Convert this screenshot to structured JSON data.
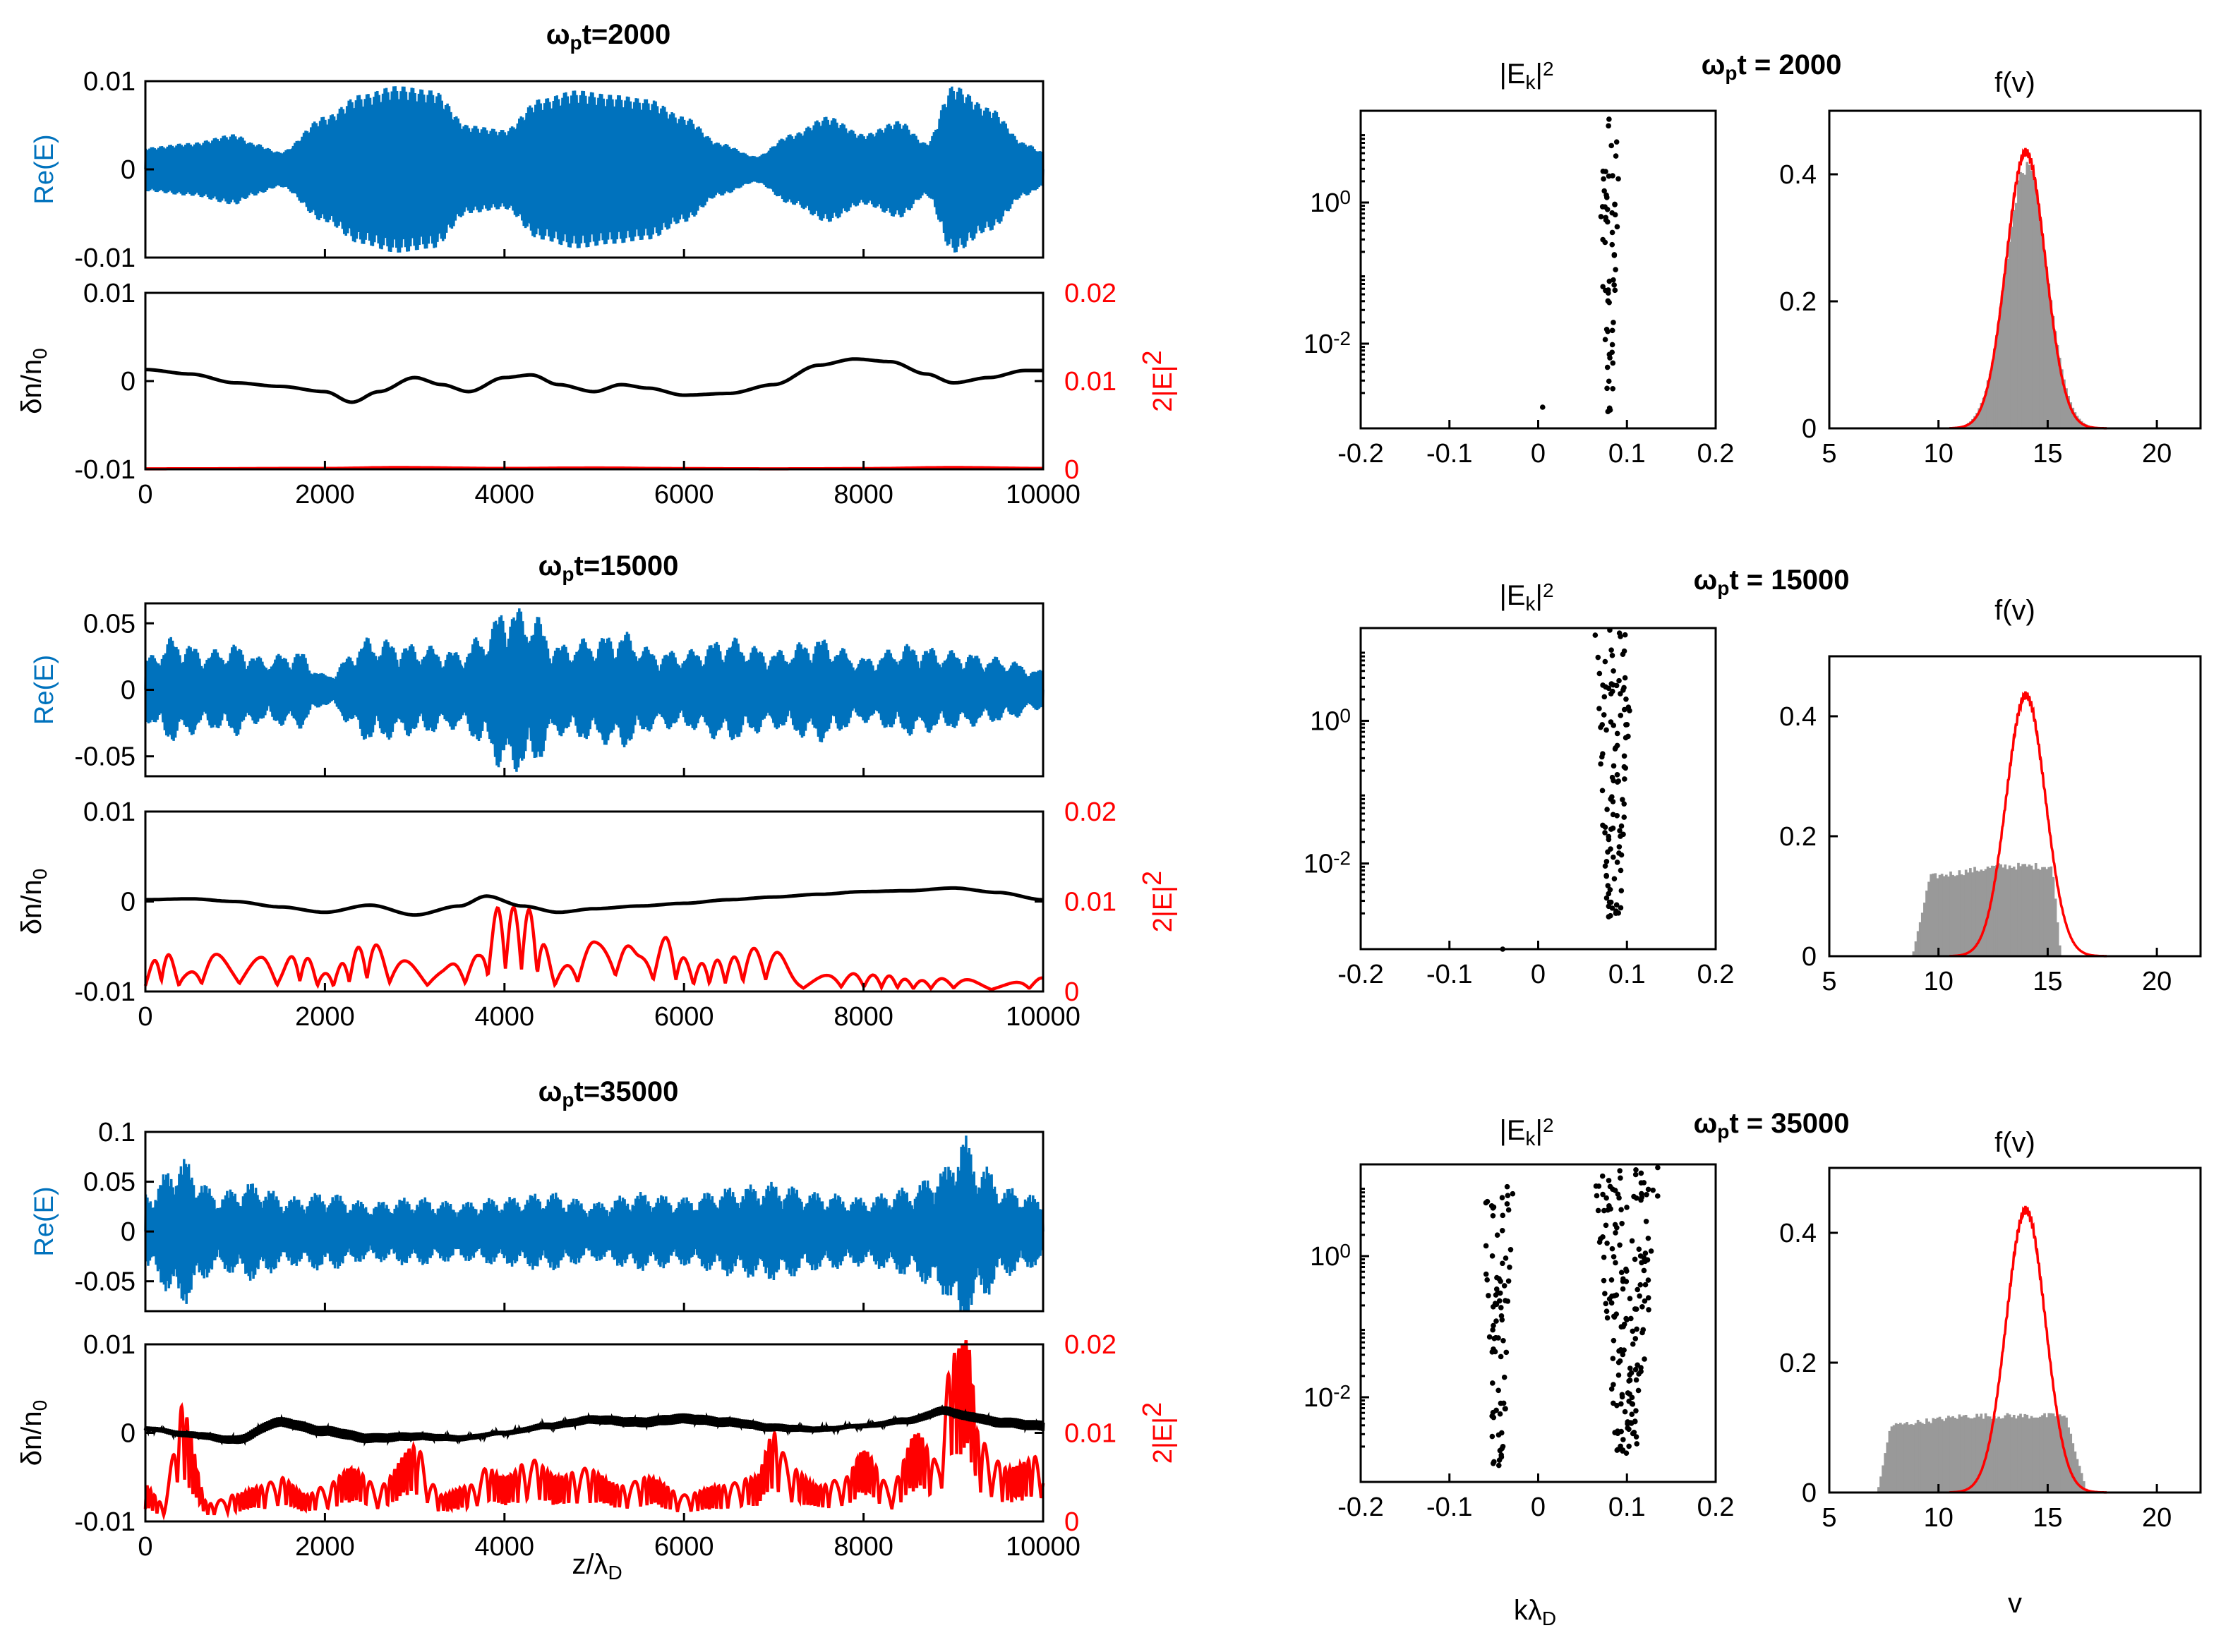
{
  "figure": {
    "rows": [
      {
        "time_label": "ω_p t=2000",
        "title_main": "t=2000",
        "spec_title_main": "t = 2000",
        "ReE": {
          "ylabel": "Re(E)",
          "ylim": [
            -0.01,
            0.01
          ],
          "yticks": [
            "0.01",
            "0",
            "-0.01"
          ]
        },
        "dn": {
          "ylabel": "δn/n_0",
          "ylim": [
            -0.01,
            0.01
          ],
          "yticks": [
            "0.01",
            "0",
            "-0.01"
          ],
          "right_label": "2|E|^2",
          "rylim": [
            0,
            0.02
          ],
          "ryticks": [
            "0.02",
            "0.01",
            "0"
          ]
        },
        "spec": {
          "title": "|E_k|^2",
          "yticks": [
            "10^0",
            "10^-2"
          ]
        },
        "fv": {
          "title": "f(v)",
          "ylim": [
            0,
            0.5
          ],
          "yticks": [
            "0.4",
            "0.2",
            "0"
          ]
        }
      },
      {
        "time_label": "ω_p t=15000",
        "title_main": "t=15000",
        "spec_title_main": "t = 15000",
        "ReE": {
          "ylabel": "Re(E)",
          "ylim": [
            -0.065,
            0.065
          ],
          "yticks": [
            "0.05",
            "0",
            "-0.05"
          ]
        },
        "dn": {
          "ylabel": "δn/n_0",
          "ylim": [
            -0.01,
            0.01
          ],
          "yticks": [
            "0.01",
            "0",
            "-0.01"
          ],
          "right_label": "2|E|^2",
          "rylim": [
            0,
            0.02
          ],
          "ryticks": [
            "0.02",
            "0.01",
            "0"
          ]
        },
        "spec": {
          "title": "|E_k|^2",
          "yticks": [
            "10^0",
            "10^-2"
          ]
        },
        "fv": {
          "title": "f(v)",
          "ylim": [
            0,
            0.5
          ],
          "yticks": [
            "0.4",
            "0.2",
            "0"
          ]
        }
      },
      {
        "time_label": "ω_p t=35000",
        "title_main": "t=35000",
        "spec_title_main": "t = 35000",
        "ReE": {
          "ylabel": "Re(E)",
          "ylim": [
            -0.08,
            0.1
          ],
          "yticks": [
            "0.1",
            "0.05",
            "0",
            "-0.05"
          ]
        },
        "dn": {
          "ylabel": "δn/n_0",
          "ylim": [
            -0.01,
            0.01
          ],
          "yticks": [
            "0.01",
            "0",
            "-0.01"
          ],
          "right_label": "2|E|^2",
          "rylim": [
            0,
            0.02
          ],
          "ryticks": [
            "0.02",
            "0.01",
            "0"
          ]
        },
        "spec": {
          "title": "|E_k|^2",
          "yticks": [
            "10^0",
            "10^-2"
          ]
        },
        "fv": {
          "title": "f(v)",
          "ylim": [
            0,
            0.5
          ],
          "yticks": [
            "0.4",
            "0.2",
            "0"
          ]
        }
      }
    ],
    "omega_symbol": "ω",
    "omega_sub": "p",
    "xlabel_z": "z/λ_D",
    "xlabel_k": "kλ_D",
    "xlabel_v": "v",
    "xticks_z": [
      "0",
      "2000",
      "4000",
      "6000",
      "8000",
      "10000"
    ],
    "xticks_k": [
      "-0.2",
      "-0.1",
      "0",
      "0.1",
      "0.2"
    ],
    "xticks_v": [
      "5",
      "10",
      "15",
      "20"
    ]
  },
  "chart_data": [
    {
      "type": "line",
      "panel": "Re(E) vs z/λD (three times)",
      "xlabel": "z/λ_D",
      "ylabel": "Re(E)",
      "xlim": [
        0,
        10000
      ],
      "series": [
        {
          "name": "ω_p t=2000",
          "color": "#0072BD",
          "carrier_wavenumber": 0.08,
          "envelope_z": [
            0,
            500,
            1000,
            1200,
            1500,
            2000,
            2400,
            2800,
            3200,
            3600,
            4000,
            4400,
            4800,
            5200,
            5600,
            6000,
            6400,
            6800,
            7200,
            7600,
            8000,
            8400,
            8700,
            9000,
            9400,
            9800,
            10000
          ],
          "envelope_amp": [
            0.0025,
            0.003,
            0.004,
            0.003,
            0.002,
            0.006,
            0.0085,
            0.0095,
            0.009,
            0.005,
            0.0045,
            0.008,
            0.009,
            0.0085,
            0.008,
            0.006,
            0.003,
            0.0015,
            0.004,
            0.006,
            0.004,
            0.0055,
            0.003,
            0.0095,
            0.007,
            0.003,
            0.002
          ]
        },
        {
          "name": "ω_p t=15000",
          "color": "#0072BD",
          "carrier_wavenumber": 0.08,
          "envelope_z": [
            0,
            300,
            700,
            1000,
            1300,
            1700,
            2000,
            2500,
            3000,
            3500,
            3800,
            4000,
            4300,
            4600,
            5000,
            5300,
            5700,
            6000,
            6500,
            7000,
            7500,
            8000,
            8500,
            9000,
            9500,
            10000
          ],
          "envelope_amp": [
            0.025,
            0.04,
            0.03,
            0.035,
            0.025,
            0.03,
            0.012,
            0.04,
            0.035,
            0.03,
            0.045,
            0.065,
            0.06,
            0.035,
            0.04,
            0.045,
            0.03,
            0.03,
            0.04,
            0.03,
            0.04,
            0.025,
            0.035,
            0.03,
            0.025,
            0.015
          ]
        },
        {
          "name": "ω_p t=35000",
          "color": "#0072BD",
          "carrier_wavenumber": 0.09,
          "envelope_z": [
            0,
            400,
            800,
            1200,
            1600,
            2000,
            2500,
            3000,
            3500,
            4000,
            4500,
            5000,
            5500,
            6000,
            6500,
            7000,
            7500,
            8000,
            8500,
            8900,
            9100,
            9300,
            9600,
            10000
          ],
          "envelope_amp": [
            0.04,
            0.075,
            0.04,
            0.05,
            0.035,
            0.04,
            0.03,
            0.035,
            0.03,
            0.035,
            0.04,
            0.03,
            0.04,
            0.035,
            0.045,
            0.05,
            0.04,
            0.035,
            0.045,
            0.065,
            0.1,
            0.07,
            0.045,
            0.035
          ]
        }
      ]
    },
    {
      "type": "line",
      "panel": "δn/n0 (left axis, black) and 2|E|^2 (right axis, red) vs z/λD",
      "xlabel": "z/λ_D",
      "xlim": [
        0,
        10000
      ],
      "ylim": [
        -0.01,
        0.01
      ],
      "ylim_right": [
        0,
        0.02
      ],
      "series": [
        {
          "name": "δn/n0 at ω_p t=2000",
          "color": "#000000",
          "z": [
            0,
            500,
            1000,
            1500,
            2000,
            2300,
            2600,
            3000,
            3300,
            3600,
            4000,
            4300,
            4600,
            5000,
            5300,
            5600,
            6000,
            6500,
            7000,
            7500,
            7900,
            8300,
            8700,
            9000,
            9400,
            9800,
            10000
          ],
          "values": [
            0.0013,
            0.0008,
            -0.0002,
            -0.0006,
            -0.0012,
            -0.0024,
            -0.0012,
            0.0004,
            -0.0004,
            -0.0012,
            0.0004,
            0.0007,
            -0.0004,
            -0.0012,
            -0.0004,
            -0.0008,
            -0.0016,
            -0.0014,
            -0.0004,
            0.0018,
            0.0025,
            0.0022,
            0.0008,
            -0.0002,
            0.0004,
            0.0012,
            0.0012
          ]
        },
        {
          "name": "2|E|^2 at ω_p t=2000",
          "color": "#ff0000",
          "z": [
            0,
            2000,
            2800,
            4000,
            5000,
            6000,
            7000,
            8000,
            9000,
            10000
          ],
          "values": [
            5e-05,
            0.0001,
            0.0002,
            0.0001,
            0.00015,
            8e-05,
            5e-05,
            8e-05,
            0.0002,
            0.0001
          ]
        },
        {
          "name": "δn/n0 at ω_p t=15000",
          "color": "#000000",
          "z": [
            0,
            500,
            1000,
            1500,
            2000,
            2500,
            3000,
            3500,
            3800,
            4200,
            4600,
            5000,
            5500,
            6000,
            6500,
            7000,
            7500,
            8000,
            8500,
            9000,
            9500,
            10000
          ],
          "values": [
            0.0002,
            0.0003,
            0.0,
            -0.0006,
            -0.0012,
            -0.0004,
            -0.0015,
            -0.0005,
            0.0006,
            -0.0005,
            -0.0012,
            -0.0008,
            -0.0005,
            -0.0002,
            0.0002,
            0.0005,
            0.0008,
            0.0011,
            0.0012,
            0.0015,
            0.001,
            0.0002
          ]
        },
        {
          "name": "2|E|^2 at ω_p t=15000",
          "color": "#ff0000",
          "peaks_z": [
            0,
            200,
            450,
            750,
            1000,
            1300,
            1500,
            1700,
            2000,
            2500,
            2800,
            3300,
            3500,
            3700,
            3950,
            4250,
            4600,
            5000,
            5300,
            5500,
            5800,
            6100,
            6400,
            6950,
            7300,
            7800,
            8200,
            8600,
            9000,
            9500,
            10000
          ],
          "peaks_val": [
            0.0025,
            0.0045,
            0.002,
            0.0042,
            0.0035,
            0.0038,
            0.0028,
            0.0045,
            0.002,
            0.0055,
            0.0035,
            0.0025,
            0.0035,
            0.004,
            0.0095,
            0.0092,
            0.0025,
            0.0055,
            0.0072,
            0.004,
            0.006,
            0.003,
            0.0035,
            0.0052,
            0.0015,
            0.002,
            0.0018,
            0.0012,
            0.0015,
            0.0008,
            0.0015
          ]
        },
        {
          "name": "δn/n0 at ω_p t=35000",
          "color": "#000000",
          "z": [
            0,
            500,
            1000,
            1500,
            2000,
            2500,
            3000,
            3500,
            4000,
            4500,
            5000,
            5500,
            6000,
            6500,
            7000,
            7500,
            8000,
            8500,
            8900,
            9200,
            9500,
            10000
          ],
          "values": [
            0.0005,
            -0.0002,
            -0.0008,
            0.0012,
            0.0002,
            -0.0006,
            -0.0004,
            -0.0006,
            0.0,
            0.0008,
            0.0015,
            0.0012,
            0.0016,
            0.0012,
            0.0006,
            0.0004,
            0.0008,
            0.0014,
            0.0025,
            0.0018,
            0.0012,
            0.0008
          ]
        },
        {
          "name": "2|E|^2 at ω_p t=35000",
          "color": "#ff0000",
          "peaks_z": [
            0,
            200,
            400,
            700,
            1000,
            1300,
            1500,
            1800,
            2000,
            2300,
            2600,
            3000,
            3300,
            3600,
            3800,
            4000,
            4300,
            4600,
            4900,
            5300,
            5600,
            6000,
            6400,
            6800,
            7000,
            7200,
            7500,
            7800,
            8000,
            8300,
            8600,
            8800,
            9000,
            9150,
            9300,
            9600,
            10000
          ],
          "peaks_val": [
            0.004,
            0.002,
            0.013,
            0.002,
            0.003,
            0.004,
            0.005,
            0.003,
            0.004,
            0.006,
            0.004,
            0.0085,
            0.003,
            0.004,
            0.006,
            0.005,
            0.007,
            0.005,
            0.006,
            0.004,
            0.005,
            0.003,
            0.004,
            0.005,
            0.01,
            0.006,
            0.004,
            0.005,
            0.008,
            0.004,
            0.01,
            0.007,
            0.019,
            0.0205,
            0.009,
            0.006,
            0.0075
          ]
        }
      ]
    },
    {
      "type": "scatter",
      "panel": "|E_k|^2 spectrum (log y) vs kλD",
      "xlabel": "kλ_D",
      "xlim": [
        -0.2,
        0.2
      ],
      "yscale": "log",
      "ylim_log10": [
        -3.2,
        1.3
      ],
      "color": "#000000",
      "series": [
        {
          "name": "ω_p t=2000",
          "k_log10_cluster": {
            "k_center": 0.08,
            "k_spread": 0.008,
            "log10_min": -3.0,
            "log10_max": 1.2,
            "count": 60
          },
          "extra_points": [
            {
              "k": 0.005,
              "log10": -2.9
            }
          ]
        },
        {
          "name": "ω_p t=15000",
          "k_log10_cluster": {
            "k_center": 0.085,
            "k_spread": 0.015,
            "log10_min": -2.8,
            "log10_max": 1.3,
            "count": 110
          },
          "extra_points": [
            {
              "k": -0.04,
              "log10": -3.2
            }
          ]
        },
        {
          "name": "ω_p t=35000",
          "k_log10_cluster": {
            "k_center": 0.1,
            "k_spread": 0.025,
            "log10_min": -2.8,
            "log10_max": 1.3,
            "count": 170
          },
          "second_cluster": {
            "k_center": -0.045,
            "k_spread": 0.012,
            "log10_min": -3.0,
            "log10_max": 1.0,
            "count": 80
          }
        }
      ]
    },
    {
      "type": "area",
      "panel": "f(v) vs v: gray histogram (current) and red curve (initial)",
      "xlabel": "v",
      "xlim": [
        5,
        22
      ],
      "ylim": [
        0,
        0.5
      ],
      "series": [
        {
          "name": "initial f(v) (red)",
          "color": "#ff0000",
          "gaussian": {
            "mean": 14,
            "sigma": 0.9,
            "peak": 0.435
          },
          "support": [
            10.5,
            17.7
          ]
        },
        {
          "name": "histogram ω_p t=2000",
          "color": "#999999",
          "gaussian": {
            "mean": 14,
            "sigma": 0.95,
            "peak": 0.42
          }
        },
        {
          "name": "histogram ω_p t=15000",
          "color": "#999999",
          "plateau": {
            "v_start": 8.8,
            "v_end": 15.6,
            "height": 0.15,
            "rise_to": 9.6,
            "fall_from": 15.2
          }
        },
        {
          "name": "histogram ω_p t=35000",
          "color": "#999999",
          "plateau": {
            "v_start": 7.2,
            "v_end": 16.8,
            "height": 0.118,
            "rise_to": 7.8,
            "fall_from": 15.8
          }
        }
      ]
    }
  ]
}
